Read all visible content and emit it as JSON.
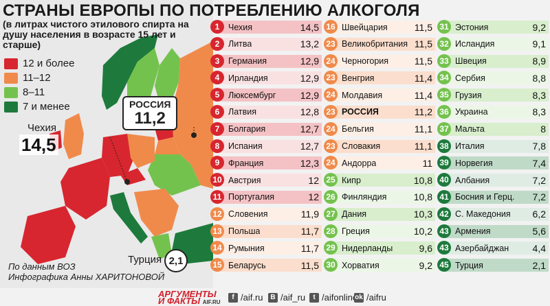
{
  "title": "СТРАНЫ ЕВРОПЫ ПО ПОТРЕБЛЕНИЮ АЛКОГОЛЯ",
  "subtitle": "(в литрах чистого этилового спирта на душу населения в возрасте 15 лет и старше)",
  "legend": [
    {
      "label": "12 и более",
      "color": "#d7262f"
    },
    {
      "label": "11–12",
      "color": "#f08a4b"
    },
    {
      "label": "8–11",
      "color": "#74c24e"
    },
    {
      "label": "7 и менее",
      "color": "#1d7a3c"
    }
  ],
  "callouts": {
    "czech": {
      "name": "Чехия",
      "value": "14,5"
    },
    "russia": {
      "name": "РОССИЯ",
      "value": "11,2"
    },
    "turkey": {
      "name": "Турция",
      "value": "2,1"
    }
  },
  "source": "По данным ВОЗ",
  "author": "Инфографика Анны ХАРИТОНОВОЙ",
  "footer": {
    "logo_line1": "АРГУМЕНТЫ",
    "logo_line2": "И ФАКТЫ",
    "logo_site": "AIF.RU",
    "social": [
      {
        "icon": "f",
        "text": "/aif.ru"
      },
      {
        "icon": "B",
        "text": "/aif_ru"
      },
      {
        "icon": "t",
        "text": "/aifonline"
      },
      {
        "icon": "ok",
        "text": "/aifru"
      }
    ]
  },
  "chart_data": {
    "type": "table",
    "title": "СТРАНЫ ЕВРОПЫ ПО ПОТРЕБЛЕНИЮ АЛКОГОЛЯ",
    "rows": [
      {
        "rank": "1",
        "country": "Чехия",
        "value": "14,5",
        "color": "#d7262f"
      },
      {
        "rank": "2",
        "country": "Литва",
        "value": "13,2",
        "color": "#d7262f"
      },
      {
        "rank": "3",
        "country": "Германия",
        "value": "12,9",
        "color": "#d7262f"
      },
      {
        "rank": "4",
        "country": "Ирландия",
        "value": "12,9",
        "color": "#d7262f"
      },
      {
        "rank": "5",
        "country": "Люксембург",
        "value": "12,9",
        "color": "#d7262f"
      },
      {
        "rank": "6",
        "country": "Латвия",
        "value": "12,8",
        "color": "#d7262f"
      },
      {
        "rank": "7",
        "country": "Болгария",
        "value": "12,7",
        "color": "#d7262f"
      },
      {
        "rank": "8",
        "country": "Испания",
        "value": "12,7",
        "color": "#d7262f"
      },
      {
        "rank": "9",
        "country": "Франция",
        "value": "12,3",
        "color": "#d7262f"
      },
      {
        "rank": "10",
        "country": "Австрия",
        "value": "12",
        "color": "#d7262f"
      },
      {
        "rank": "11",
        "country": "Португалия",
        "value": "12",
        "color": "#d7262f"
      },
      {
        "rank": "12",
        "country": "Словения",
        "value": "11,9",
        "color": "#f08a4b"
      },
      {
        "rank": "13",
        "country": "Польша",
        "value": "11,7",
        "color": "#f08a4b"
      },
      {
        "rank": "14",
        "country": "Румыния",
        "value": "11,7",
        "color": "#f08a4b"
      },
      {
        "rank": "15",
        "country": "Беларусь",
        "value": "11,5",
        "color": "#f08a4b"
      },
      {
        "rank": "16",
        "country": "Швейцария",
        "value": "11,5",
        "color": "#f08a4b"
      },
      {
        "rank": "23",
        "country": "Великобритания",
        "value": "11,5",
        "color": "#f08a4b"
      },
      {
        "rank": "24",
        "country": "Черногория",
        "value": "11,5",
        "color": "#f08a4b"
      },
      {
        "rank": "23",
        "country": "Венгрия",
        "value": "11,4",
        "color": "#f08a4b"
      },
      {
        "rank": "24",
        "country": "Молдавия",
        "value": "11,4",
        "color": "#f08a4b"
      },
      {
        "rank": "23",
        "country": "РОССИЯ",
        "value": "11,2",
        "color": "#f08a4b",
        "highlight": true
      },
      {
        "rank": "24",
        "country": "Бельгия",
        "value": "11,1",
        "color": "#f08a4b"
      },
      {
        "rank": "23",
        "country": "Словакия",
        "value": "11,1",
        "color": "#f08a4b"
      },
      {
        "rank": "24",
        "country": "Андорра",
        "value": "11",
        "color": "#f08a4b"
      },
      {
        "rank": "25",
        "country": "Кипр",
        "value": "10,8",
        "color": "#74c24e"
      },
      {
        "rank": "26",
        "country": "Финляндия",
        "value": "10,8",
        "color": "#74c24e"
      },
      {
        "rank": "27",
        "country": "Дания",
        "value": "10,3",
        "color": "#74c24e"
      },
      {
        "rank": "28",
        "country": "Греция",
        "value": "10,2",
        "color": "#74c24e"
      },
      {
        "rank": "29",
        "country": "Нидерланды",
        "value": "9,6",
        "color": "#74c24e"
      },
      {
        "rank": "30",
        "country": "Хорватия",
        "value": "9,2",
        "color": "#74c24e"
      },
      {
        "rank": "31",
        "country": "Эстония",
        "value": "9,2",
        "color": "#74c24e"
      },
      {
        "rank": "32",
        "country": "Исландия",
        "value": "9,1",
        "color": "#74c24e"
      },
      {
        "rank": "33",
        "country": "Швеция",
        "value": "8,9",
        "color": "#74c24e"
      },
      {
        "rank": "34",
        "country": "Сербия",
        "value": "8,8",
        "color": "#74c24e"
      },
      {
        "rank": "35",
        "country": "Грузия",
        "value": "8,3",
        "color": "#74c24e"
      },
      {
        "rank": "36",
        "country": "Украина",
        "value": "8,3",
        "color": "#74c24e"
      },
      {
        "rank": "37",
        "country": "Мальта",
        "value": "8",
        "color": "#74c24e"
      },
      {
        "rank": "38",
        "country": "Италия",
        "value": "7,8",
        "color": "#1d7a3c"
      },
      {
        "rank": "39",
        "country": "Норвегия",
        "value": "7,4",
        "color": "#1d7a3c"
      },
      {
        "rank": "40",
        "country": "Албания",
        "value": "7,2",
        "color": "#1d7a3c"
      },
      {
        "rank": "41",
        "country": "Босния и Герц.",
        "value": "7,2",
        "color": "#1d7a3c"
      },
      {
        "rank": "42",
        "country": "С. Македония",
        "value": "6,2",
        "color": "#1d7a3c"
      },
      {
        "rank": "43",
        "country": "Армения",
        "value": "5,6",
        "color": "#1d7a3c"
      },
      {
        "rank": "43",
        "country": "Азербайджан",
        "value": "4,4",
        "color": "#1d7a3c"
      },
      {
        "rank": "45",
        "country": "Турция",
        "value": "2,1",
        "color": "#1d7a3c"
      }
    ]
  }
}
